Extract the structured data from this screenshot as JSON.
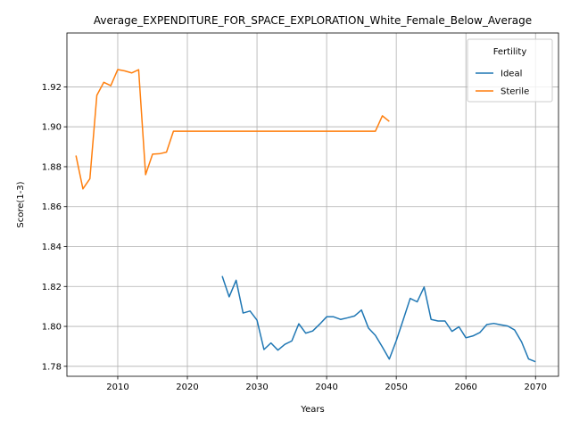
{
  "chart_data": {
    "type": "line",
    "title": "Average_EXPENDITURE_FOR_SPACE_EXPLORATION_White_Female_Below_Average",
    "xlabel": "Years",
    "ylabel": "Score(1-3)",
    "xlim": [
      2002.7,
      2073.3
    ],
    "ylim": [
      1.775,
      1.947
    ],
    "xticks": [
      2010,
      2020,
      2030,
      2040,
      2050,
      2060,
      2070
    ],
    "yticks": [
      1.78,
      1.8,
      1.82,
      1.84,
      1.86,
      1.88,
      1.9,
      1.92
    ],
    "grid": true,
    "legend": {
      "title": "Fertility",
      "position": "top-right"
    },
    "series": [
      {
        "name": "Ideal",
        "color": "#1f77b4",
        "x": [
          2025,
          2026,
          2027,
          2028,
          2029,
          2030,
          2031,
          2032,
          2033,
          2034,
          2035,
          2036,
          2037,
          2038,
          2039,
          2040,
          2041,
          2042,
          2043,
          2044,
          2045,
          2046,
          2047,
          2048,
          2049,
          2050,
          2051,
          2052,
          2053,
          2054,
          2055,
          2056,
          2057,
          2058,
          2059,
          2060,
          2061,
          2062,
          2063,
          2064,
          2065,
          2066,
          2067,
          2068,
          2069,
          2070
        ],
        "y": [
          1.8252,
          1.8148,
          1.8231,
          1.8067,
          1.8077,
          1.8031,
          1.7884,
          1.7917,
          1.7881,
          1.791,
          1.7927,
          1.8013,
          1.7966,
          1.7977,
          1.8011,
          1.8048,
          1.8048,
          1.8035,
          1.8043,
          1.8052,
          1.8082,
          1.7992,
          1.7955,
          1.7897,
          1.7836,
          1.7928,
          1.8033,
          1.814,
          1.8123,
          1.8197,
          1.8035,
          1.8027,
          1.8027,
          1.7975,
          1.7998,
          1.7943,
          1.7952,
          1.7969,
          1.8009,
          1.8015,
          1.8008,
          1.8002,
          1.7982,
          1.7922,
          1.7837,
          1.7823
        ]
      },
      {
        "name": "Sterile",
        "color": "#ff7f0e",
        "x": [
          2004,
          2005,
          2006,
          2007,
          2008,
          2009,
          2010,
          2011,
          2012,
          2013,
          2014,
          2015,
          2016,
          2017,
          2018,
          2019,
          2020,
          2021,
          2022,
          2023,
          2024,
          2025,
          2026,
          2027,
          2028,
          2029,
          2030,
          2031,
          2032,
          2033,
          2034,
          2035,
          2036,
          2037,
          2038,
          2039,
          2040,
          2041,
          2042,
          2043,
          2044,
          2045,
          2046,
          2047,
          2048,
          2049
        ],
        "y": [
          1.8856,
          1.8689,
          1.874,
          1.9158,
          1.9223,
          1.9206,
          1.9287,
          1.928,
          1.927,
          1.9286,
          1.876,
          1.8863,
          1.8865,
          1.8873,
          1.8978,
          1.8978,
          1.8978,
          1.8978,
          1.8978,
          1.8978,
          1.8978,
          1.8978,
          1.8978,
          1.8978,
          1.8978,
          1.8978,
          1.8978,
          1.8978,
          1.8978,
          1.8978,
          1.8978,
          1.8978,
          1.8978,
          1.8978,
          1.8978,
          1.8978,
          1.8978,
          1.8978,
          1.8978,
          1.8978,
          1.8978,
          1.8978,
          1.8978,
          1.8978,
          1.9055,
          1.9027
        ]
      }
    ]
  }
}
